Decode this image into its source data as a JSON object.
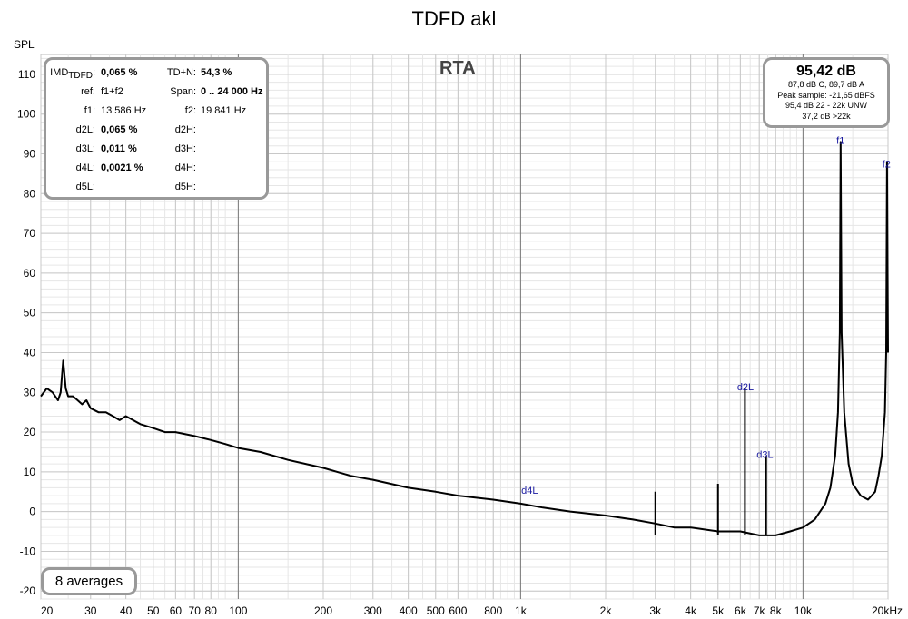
{
  "title": "TDFD akl",
  "rta_label": "RTA",
  "imd_panel": {
    "imd_label": "IMD",
    "imd_sub": "TDFD",
    "imd_colon": ":",
    "imd_value": "0,065 %",
    "tdn_label": "TD+N:",
    "tdn_value": "54,3 %",
    "ref_label": "ref:",
    "ref_value": "f1+f2",
    "span_label": "Span:",
    "span_value": "0 .. 24 000 Hz",
    "f1_label": "f1:",
    "f1_value": "13 586 Hz",
    "f2_label": "f2:",
    "f2_value": "19 841 Hz",
    "d2l_label": "d2L:",
    "d2l_value": "0,065 %",
    "d2h_label": "d2H:",
    "d3l_label": "d3L:",
    "d3l_value": "0,011 %",
    "d3h_label": "d3H:",
    "d4l_label": "d4L:",
    "d4l_value": "0,0021 %",
    "d4h_label": "d4H:",
    "d5l_label": "d5L:",
    "d5h_label": "d5H:"
  },
  "level_panel": {
    "main": "95,42 dB",
    "line1": "87,8 dB C, 89,7 dB A",
    "line2": "Peak sample: -21,65 dBFS",
    "line3": "95,4 dB 22 - 22k UNW",
    "line4": "37,2 dB >22k"
  },
  "averages": "8 averages",
  "chart_data": {
    "type": "line",
    "title": "TDFD akl",
    "ylabel": "SPL",
    "xscale": "log",
    "xlim": [
      20,
      20000
    ],
    "ylim": [
      -22,
      115
    ],
    "grid": true,
    "x_tick_labels": [
      {
        "v": 20,
        "t": "20"
      },
      {
        "v": 30,
        "t": "30"
      },
      {
        "v": 40,
        "t": "40"
      },
      {
        "v": 50,
        "t": "50"
      },
      {
        "v": 60,
        "t": "60"
      },
      {
        "v": 70,
        "t": "70"
      },
      {
        "v": 80,
        "t": "80"
      },
      {
        "v": 100,
        "t": "100"
      },
      {
        "v": 200,
        "t": "200"
      },
      {
        "v": 300,
        "t": "300"
      },
      {
        "v": 400,
        "t": "400"
      },
      {
        "v": 500,
        "t": "500"
      },
      {
        "v": 600,
        "t": "600"
      },
      {
        "v": 800,
        "t": "800"
      },
      {
        "v": 1000,
        "t": "1k"
      },
      {
        "v": 2000,
        "t": "2k"
      },
      {
        "v": 3000,
        "t": "3k"
      },
      {
        "v": 4000,
        "t": "4k"
      },
      {
        "v": 5000,
        "t": "5k"
      },
      {
        "v": 6000,
        "t": "6k"
      },
      {
        "v": 7000,
        "t": "7k"
      },
      {
        "v": 8000,
        "t": "8k"
      },
      {
        "v": 10000,
        "t": "10k"
      },
      {
        "v": 20000,
        "t": "20kHz"
      }
    ],
    "y_ticks": [
      110,
      100,
      90,
      80,
      70,
      60,
      50,
      40,
      30,
      20,
      10,
      0,
      -10,
      -20
    ],
    "series": [
      {
        "x": [
          20,
          21,
          22,
          23,
          23.5,
          24,
          24.5,
          25,
          26,
          27,
          28,
          29,
          30,
          32,
          34,
          36,
          38,
          40,
          45,
          50,
          55,
          60,
          70,
          80,
          90,
          100,
          120,
          150,
          200,
          250,
          300,
          400,
          500,
          600,
          800,
          1000,
          1200,
          1500,
          2000,
          2500,
          3000,
          3500,
          4000,
          5000,
          6000,
          7000,
          8000,
          9000,
          10000,
          11000,
          12000,
          12500,
          13000,
          13300,
          13500,
          13586,
          13700,
          14000,
          14500,
          15000,
          16000,
          17000,
          18000,
          18500,
          19000,
          19500,
          19700,
          19841,
          20000
        ],
        "y": [
          29,
          31,
          30,
          28,
          30,
          38,
          31,
          29,
          29,
          28,
          27,
          28,
          26,
          25,
          25,
          24,
          23,
          24,
          22,
          21,
          20,
          20,
          19,
          18,
          17,
          16,
          15,
          13,
          11,
          9,
          8,
          6,
          5,
          4,
          3,
          2,
          1,
          0,
          -1,
          -2,
          -3,
          -4,
          -4,
          -5,
          -5,
          -6,
          -6,
          -5,
          -4,
          -2,
          2,
          6,
          14,
          25,
          45,
          93,
          45,
          25,
          12,
          7,
          4,
          3,
          5,
          9,
          14,
          25,
          40,
          88,
          40
        ]
      }
    ],
    "peaks": [
      {
        "x": 3000,
        "y": 5
      },
      {
        "x": 5000,
        "y": 7
      },
      {
        "x": 6227,
        "y": 31
      },
      {
        "x": 7400,
        "y": 14
      }
    ],
    "annotations": [
      {
        "label": "f1",
        "x": 13586,
        "y": 93
      },
      {
        "label": "f2",
        "x": 19841,
        "y": 87
      },
      {
        "label": "d2L",
        "x": 6255,
        "y": 31
      },
      {
        "label": "d3L",
        "x": 7331,
        "y": 14
      },
      {
        "label": "d4L",
        "x": 1076,
        "y": 5
      }
    ]
  }
}
